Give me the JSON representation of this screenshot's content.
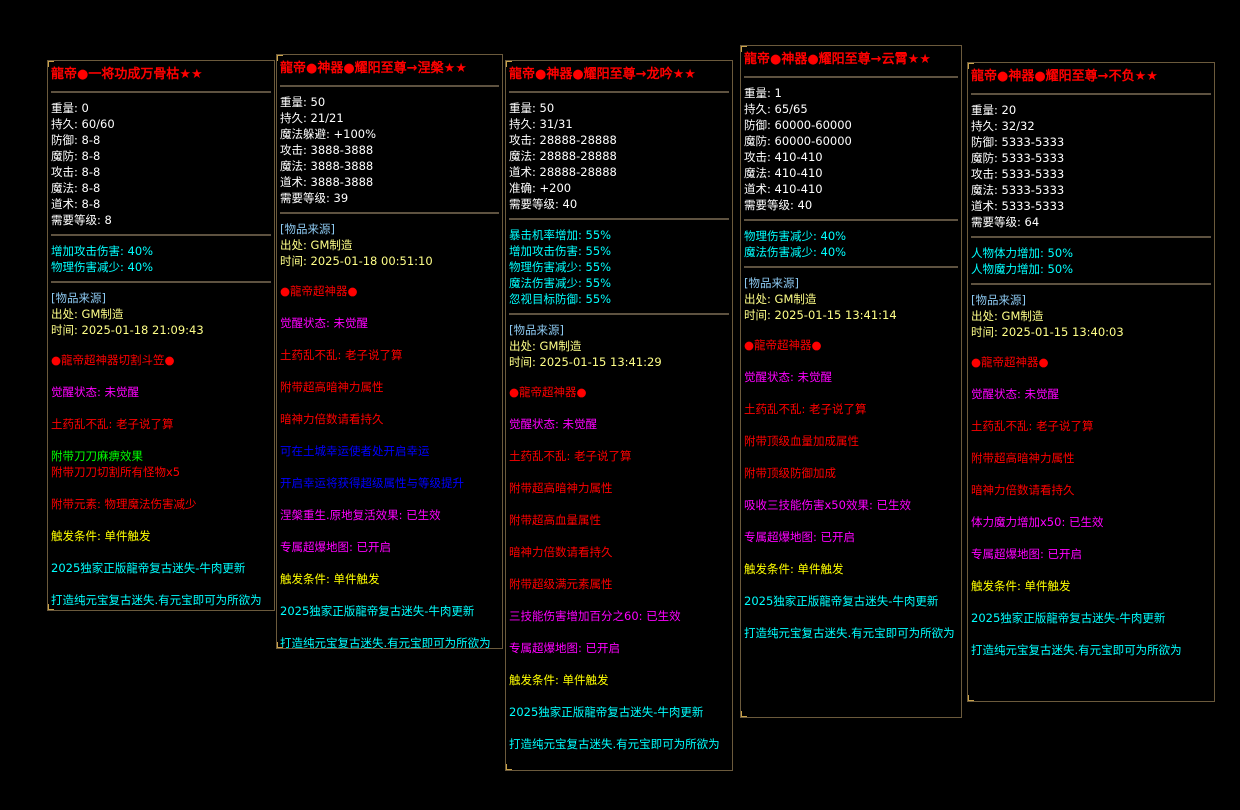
{
  "colors": {
    "white": "#ffffff",
    "cyan": "#00ffff",
    "source": "#8cc8f0",
    "pale_yellow": "#ffff88",
    "red": "#ff0000",
    "magenta": "#ff00ff",
    "green": "#00ff00",
    "blue": "#0000ff",
    "yellow": "#ffff00",
    "border": "#6b5a3c"
  },
  "panels": [
    {
      "title": "龍帝●一将功成万骨枯★★",
      "stats": [
        "重量: 0",
        "持久: 60/60",
        "防御: 8-8",
        "魔防: 8-8",
        "攻击: 8-8",
        "魔法: 8-8",
        "道术: 8-8",
        "需要等级: 8"
      ],
      "attrs": [
        "增加攻击伤害: 40%",
        "物理伤害减少: 40%"
      ],
      "source": {
        "label": "[物品来源]",
        "origin": "出处: GM制造",
        "time": "时间: 2025-01-18 21:09:43"
      },
      "effects": [
        [
          {
            "text": "●龍帝超神器切割斗笠●",
            "color": "red"
          }
        ],
        [
          {
            "text": "觉醒状态: 未觉醒",
            "color": "magenta"
          }
        ],
        [
          {
            "text": "土药乱不乱: 老子说了算",
            "color": "red"
          }
        ],
        [
          {
            "text": "附带刀刀麻痹效果",
            "color": "green"
          },
          {
            "text": "附带刀刀切割所有怪物x5",
            "color": "red"
          }
        ],
        [
          {
            "text": "附带元素: 物理魔法伤害减少",
            "color": "red"
          }
        ],
        [
          {
            "text": "触发条件: 单件触发",
            "color": "yellow"
          }
        ],
        [
          {
            "text": "2025独家正版龍帝复古迷失-牛肉更新",
            "color": "cyan"
          }
        ],
        [
          {
            "text": "打造纯元宝复古迷失.有元宝即可为所欲为",
            "color": "cyan"
          }
        ]
      ]
    },
    {
      "title": "龍帝●神器●耀阳至尊→涅槃★★",
      "stats": [
        "重量: 50",
        "持久: 21/21",
        "魔法躲避: +100%",
        "攻击: 3888-3888",
        "魔法: 3888-3888",
        "道术: 3888-3888",
        "需要等级: 39"
      ],
      "attrs": [],
      "source": {
        "label": "[物品来源]",
        "origin": "出处: GM制造",
        "time": "时间: 2025-01-18 00:51:10"
      },
      "effects": [
        [
          {
            "text": "●龍帝超神器●",
            "color": "red"
          }
        ],
        [
          {
            "text": "觉醒状态: 未觉醒",
            "color": "magenta"
          }
        ],
        [
          {
            "text": "土药乱不乱: 老子说了算",
            "color": "red"
          }
        ],
        [
          {
            "text": "附带超高暗神力属性",
            "color": "red"
          }
        ],
        [
          {
            "text": "暗神力倍数请看持久",
            "color": "red"
          }
        ],
        [
          {
            "text": "可在土城幸运使者处开启幸运",
            "color": "blue"
          }
        ],
        [
          {
            "text": "开启幸运将获得超级属性与等级提升",
            "color": "blue"
          }
        ],
        [
          {
            "text": "涅槃重生.原地复活效果: 已生效",
            "color": "magenta"
          }
        ],
        [
          {
            "text": "专属超爆地图: 已开启",
            "color": "magenta"
          }
        ],
        [
          {
            "text": "触发条件: 单件触发",
            "color": "yellow"
          }
        ],
        [
          {
            "text": "2025独家正版龍帝复古迷失-牛肉更新",
            "color": "cyan"
          }
        ],
        [
          {
            "text": "打造纯元宝复古迷失.有元宝即可为所欲为",
            "color": "cyan"
          }
        ]
      ]
    },
    {
      "title": "龍帝●神器●耀阳至尊→龙吟★★",
      "stats": [
        "重量: 50",
        "持久: 31/31",
        "攻击: 28888-28888",
        "魔法: 28888-28888",
        "道术: 28888-28888",
        "准确: +200",
        "需要等级: 40"
      ],
      "attrs": [
        "暴击机率增加: 55%",
        "增加攻击伤害: 55%",
        "物理伤害减少: 55%",
        "魔法伤害减少: 55%",
        "忽视目标防御: 55%"
      ],
      "source": {
        "label": "[物品来源]",
        "origin": "出处: GM制造",
        "time": "时间: 2025-01-15 13:41:29"
      },
      "effects": [
        [
          {
            "text": "●龍帝超神器●",
            "color": "red"
          }
        ],
        [
          {
            "text": "觉醒状态: 未觉醒",
            "color": "magenta"
          }
        ],
        [
          {
            "text": "土药乱不乱: 老子说了算",
            "color": "red"
          }
        ],
        [
          {
            "text": "附带超高暗神力属性",
            "color": "red"
          }
        ],
        [
          {
            "text": "附带超高血量属性",
            "color": "red"
          }
        ],
        [
          {
            "text": "暗神力倍数请看持久",
            "color": "red"
          }
        ],
        [
          {
            "text": "附带超级满元素属性",
            "color": "red"
          }
        ],
        [
          {
            "text": "三技能伤害增加百分之60: 已生效",
            "color": "magenta"
          }
        ],
        [
          {
            "text": "专属超爆地图: 已开启",
            "color": "magenta"
          }
        ],
        [
          {
            "text": "触发条件: 单件触发",
            "color": "yellow"
          }
        ],
        [
          {
            "text": "2025独家正版龍帝复古迷失-牛肉更新",
            "color": "cyan"
          }
        ],
        [
          {
            "text": "打造纯元宝复古迷失.有元宝即可为所欲为",
            "color": "cyan"
          }
        ]
      ]
    },
    {
      "title": "龍帝●神器●耀阳至尊→云霄★★",
      "stats": [
        "重量: 1",
        "持久: 65/65",
        "防御: 60000-60000",
        "魔防: 60000-60000",
        "攻击: 410-410",
        "魔法: 410-410",
        "道术: 410-410",
        "需要等级: 40"
      ],
      "attrs": [
        "物理伤害减少: 40%",
        "魔法伤害减少: 40%"
      ],
      "source": {
        "label": "[物品来源]",
        "origin": "出处: GM制造",
        "time": "时间: 2025-01-15 13:41:14"
      },
      "effects": [
        [
          {
            "text": "●龍帝超神器●",
            "color": "red"
          }
        ],
        [
          {
            "text": "觉醒状态: 未觉醒",
            "color": "magenta"
          }
        ],
        [
          {
            "text": "土药乱不乱: 老子说了算",
            "color": "red"
          }
        ],
        [
          {
            "text": "附带顶级血量加成属性",
            "color": "red"
          }
        ],
        [
          {
            "text": "附带顶级防御加成",
            "color": "red"
          }
        ],
        [
          {
            "text": "吸收三技能伤害x50效果: 已生效",
            "color": "magenta"
          }
        ],
        [
          {
            "text": "专属超爆地图: 已开启",
            "color": "magenta"
          }
        ],
        [
          {
            "text": "触发条件: 单件触发",
            "color": "yellow"
          }
        ],
        [
          {
            "text": "2025独家正版龍帝复古迷失-牛肉更新",
            "color": "cyan"
          }
        ],
        [
          {
            "text": "打造纯元宝复古迷失.有元宝即可为所欲为",
            "color": "cyan"
          }
        ]
      ]
    },
    {
      "title": "龍帝●神器●耀阳至尊→不负★★",
      "stats": [
        "重量: 20",
        "持久: 32/32",
        "防御: 5333-5333",
        "魔防: 5333-5333",
        "攻击: 5333-5333",
        "魔法: 5333-5333",
        "道术: 5333-5333",
        "需要等级: 64"
      ],
      "attrs": [
        "人物体力增加: 50%",
        "人物魔力增加: 50%"
      ],
      "source": {
        "label": "[物品来源]",
        "origin": "出处: GM制造",
        "time": "时间: 2025-01-15 13:40:03"
      },
      "effects": [
        [
          {
            "text": "●龍帝超神器●",
            "color": "red"
          }
        ],
        [
          {
            "text": "觉醒状态: 未觉醒",
            "color": "magenta"
          }
        ],
        [
          {
            "text": "土药乱不乱: 老子说了算",
            "color": "red"
          }
        ],
        [
          {
            "text": "附带超高暗神力属性",
            "color": "red"
          }
        ],
        [
          {
            "text": "暗神力倍数请看持久",
            "color": "red"
          }
        ],
        [
          {
            "text": "体力魔力增加x50: 已生效",
            "color": "magenta"
          }
        ],
        [
          {
            "text": "专属超爆地图: 已开启",
            "color": "magenta"
          }
        ],
        [
          {
            "text": "触发条件: 单件触发",
            "color": "yellow"
          }
        ],
        [
          {
            "text": "2025独家正版龍帝复古迷失-牛肉更新",
            "color": "cyan"
          }
        ],
        [
          {
            "text": "打造纯元宝复古迷失.有元宝即可为所欲为",
            "color": "cyan"
          }
        ]
      ]
    }
  ]
}
